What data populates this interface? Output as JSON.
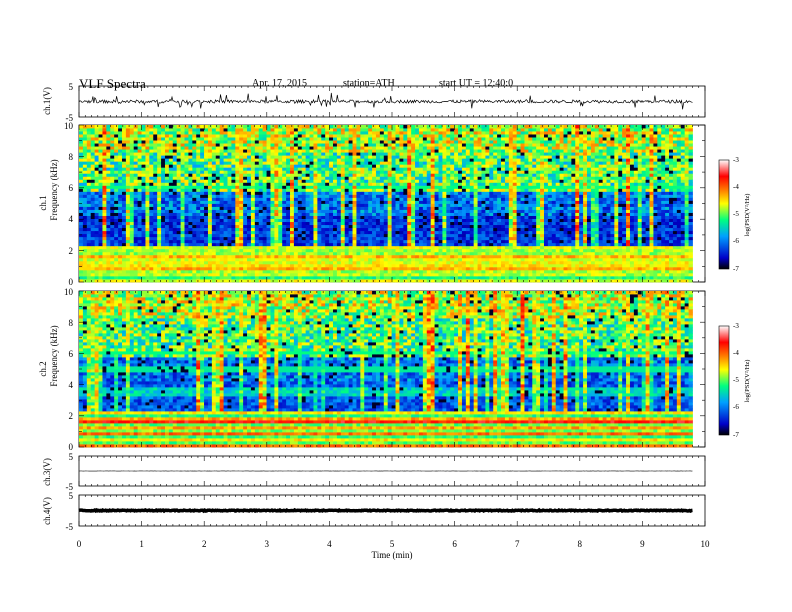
{
  "header": {
    "title": "VLF Spectra",
    "date": "Apr. 17, 2015",
    "station": "station=ATH",
    "start_ut": "start UT = 12:40:0"
  },
  "chart_data": [
    {
      "type": "line",
      "panel": "ch1-waveform",
      "ylabel": "ch.1(V)",
      "ylim": [
        -5,
        5
      ],
      "yticks": [
        "5",
        "-5"
      ],
      "xlim": [
        0,
        10
      ],
      "data_xmax": 9.8,
      "series": [
        {
          "baseline": 0,
          "noise_amplitude": 0.5,
          "spike_amplitude": 2.5
        }
      ]
    },
    {
      "type": "heatmap",
      "panel": "ch1-spectrogram",
      "ylabel_channel": "ch.1",
      "ylabel": "Frequency (kHz)",
      "ylim": [
        0,
        10
      ],
      "yticks": [
        "0",
        "2",
        "4",
        "6",
        "8",
        "10"
      ],
      "xlim": [
        0,
        10
      ],
      "data_xmax": 9.8,
      "colorbar": {
        "label": "log(PSD(V²/Hz)",
        "range": [
          -7,
          -3
        ],
        "ticks": [
          "-3",
          "-4",
          "-5",
          "-6",
          "-7"
        ],
        "colors": [
          "#000000",
          "#0000c8",
          "#00a0ff",
          "#00ff80",
          "#ffff00",
          "#ff8000",
          "#ff0000",
          "#ffffff"
        ]
      }
    },
    {
      "type": "heatmap",
      "panel": "ch2-spectrogram",
      "ylabel_channel": "ch.2",
      "ylabel": "Frequency (kHz)",
      "ylim": [
        0,
        10
      ],
      "yticks": [
        "0",
        "2",
        "4",
        "6",
        "8",
        "10"
      ],
      "xlim": [
        0,
        10
      ],
      "data_xmax": 9.8,
      "colorbar": {
        "label": "log(PSD(V²/Hz)",
        "range": [
          -7,
          -3
        ],
        "ticks": [
          "-3",
          "-4",
          "-5",
          "-6",
          "-7"
        ]
      }
    },
    {
      "type": "line",
      "panel": "ch3-waveform",
      "ylabel": "ch.3(V)",
      "ylim": [
        -5,
        5
      ],
      "yticks": [
        "5",
        "-5"
      ],
      "xlim": [
        0,
        10
      ],
      "data_xmax": 9.8,
      "series": [
        {
          "baseline": 0,
          "noise_amplitude": 0.05
        }
      ]
    },
    {
      "type": "line",
      "panel": "ch4-waveform",
      "ylabel": "ch.4(V)",
      "ylim": [
        -5,
        5
      ],
      "yticks": [
        "5",
        "-5"
      ],
      "xlim": [
        0,
        10
      ],
      "data_xmax": 9.8,
      "xlabel": "Time (min)",
      "xticks": [
        "0",
        "1",
        "2",
        "3",
        "4",
        "5",
        "6",
        "7",
        "8",
        "9",
        "10"
      ],
      "series": [
        {
          "baseline": 0,
          "noise_amplitude": 0.15
        }
      ]
    }
  ]
}
